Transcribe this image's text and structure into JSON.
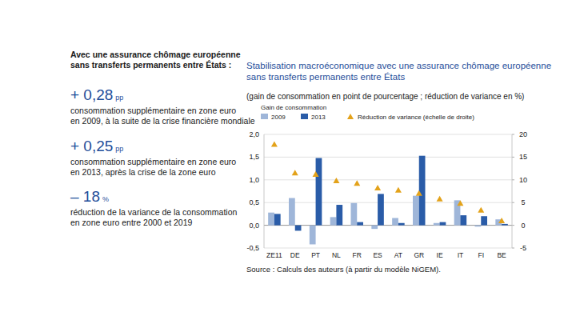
{
  "side_panel": {
    "heading": [
      "Avec une assurance chômage européenne",
      "sans transferts permanents entre États :"
    ],
    "stats": [
      {
        "value": "+ 0,28",
        "unit": "pp",
        "lines": [
          "consommation supplémentaire en zone euro",
          "en 2009, à la suite de la crise financière mondiale"
        ]
      },
      {
        "value": "+ 0,25",
        "unit": "pp",
        "lines": [
          "consommation supplémentaire en zone euro",
          "en 2013, après la crise de la zone euro"
        ]
      },
      {
        "value": "– 18",
        "unit": "%",
        "lines": [
          "réduction de la variance de la consommation",
          "en zone euro entre 2000 et 2019"
        ]
      }
    ]
  },
  "chart_data": {
    "type": "bar",
    "title": [
      "Stabilisation macroéconomique avec une assurance chômage européenne",
      "sans transferts permanents entre États"
    ],
    "subtitle": "(gain de consommation en point de pourcentage ; réduction de variance en %)",
    "legend_title": "Gain de consommation",
    "source": "Source : Calculs des auteurs (à partir du modèle NiGEM).",
    "categories": [
      "ZE11",
      "DE",
      "PT",
      "NL",
      "FR",
      "ES",
      "AT",
      "GR",
      "IE",
      "IT",
      "FI",
      "BE"
    ],
    "series": [
      {
        "name": "2009",
        "color": "#9fb6d9",
        "values": [
          0.28,
          0.6,
          -0.42,
          0.18,
          0.49,
          -0.08,
          0.16,
          0.65,
          0.05,
          0.55,
          -0.03,
          0.13
        ]
      },
      {
        "name": "2013",
        "color": "#2a5ca8",
        "values": [
          0.25,
          -0.12,
          1.48,
          0.45,
          0.07,
          0.69,
          0.05,
          1.53,
          0.07,
          0.22,
          0.2,
          0.03
        ]
      },
      {
        "name": "Réduction de variance (échelle de droite)",
        "color": "#e3a21a",
        "type": "scatter",
        "marker": "triangle",
        "axis": "y2",
        "values": [
          17.8,
          11.5,
          11.2,
          9.8,
          9.2,
          8.2,
          7.7,
          7.0,
          5.8,
          4.8,
          3.3,
          1.0
        ]
      }
    ],
    "ylim": [
      -0.5,
      2.0
    ],
    "yticks": [
      {
        "value": -0.5,
        "label": "-0,5"
      },
      {
        "value": 0,
        "label": "0,0"
      },
      {
        "value": 0.5,
        "label": "0,5"
      },
      {
        "value": 1.0,
        "label": "1,0"
      },
      {
        "value": 1.5,
        "label": "1,5"
      },
      {
        "value": 2.0,
        "label": "2,0"
      }
    ],
    "y2lim": [
      -5,
      20
    ],
    "y2ticks": [
      -5,
      0,
      5,
      10,
      15,
      20
    ],
    "grid": true,
    "legend": "top"
  }
}
